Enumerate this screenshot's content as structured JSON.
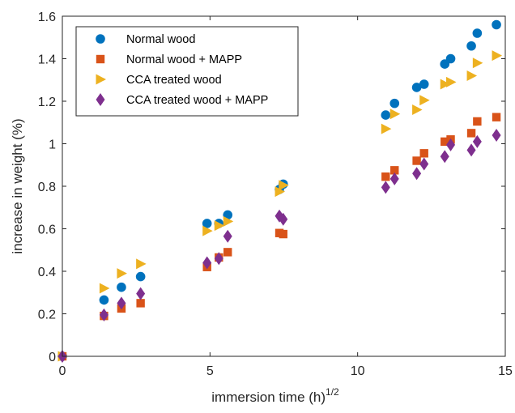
{
  "chart_data": {
    "type": "scatter",
    "xlabel": "immersion time (h)",
    "xlabel_superscript": "1/2",
    "ylabel": "increase in weight (%)",
    "xlim": [
      0,
      15
    ],
    "ylim": [
      0,
      1.6
    ],
    "xticks": [
      "0",
      "5",
      "10",
      "15"
    ],
    "yticks": [
      "0",
      "0.2",
      "0.4",
      "0.6",
      "0.8",
      "1",
      "1.2",
      "1.4",
      "1.6"
    ],
    "grid": false,
    "legend_position": "top-left",
    "series": [
      {
        "name": "Normal wood",
        "marker": "circle",
        "color": "#0072BD",
        "points": [
          [
            0,
            0.0
          ],
          [
            1.41,
            0.265
          ],
          [
            2.0,
            0.325
          ],
          [
            2.65,
            0.375
          ],
          [
            4.9,
            0.625
          ],
          [
            5.3,
            0.625
          ],
          [
            5.6,
            0.665
          ],
          [
            7.35,
            0.785
          ],
          [
            7.48,
            0.81
          ],
          [
            10.95,
            1.135
          ],
          [
            11.25,
            1.19
          ],
          [
            12.0,
            1.265
          ],
          [
            12.25,
            1.28
          ],
          [
            12.95,
            1.375
          ],
          [
            13.15,
            1.4
          ],
          [
            13.85,
            1.46
          ],
          [
            14.05,
            1.52
          ],
          [
            14.7,
            1.56
          ]
        ]
      },
      {
        "name": "Normal wood + MAPP",
        "marker": "square",
        "color": "#D95319",
        "points": [
          [
            0,
            0.0
          ],
          [
            1.41,
            0.19
          ],
          [
            2.0,
            0.225
          ],
          [
            2.65,
            0.25
          ],
          [
            4.9,
            0.42
          ],
          [
            5.3,
            0.465
          ],
          [
            5.6,
            0.49
          ],
          [
            7.35,
            0.58
          ],
          [
            7.48,
            0.575
          ],
          [
            10.95,
            0.845
          ],
          [
            11.25,
            0.875
          ],
          [
            12.0,
            0.92
          ],
          [
            12.25,
            0.955
          ],
          [
            12.95,
            1.01
          ],
          [
            13.15,
            1.02
          ],
          [
            13.85,
            1.05
          ],
          [
            14.05,
            1.105
          ],
          [
            14.7,
            1.125
          ]
        ]
      },
      {
        "name": "CCA treated wood",
        "marker": "triangle-right",
        "color": "#EDB120",
        "points": [
          [
            0,
            0.0
          ],
          [
            1.41,
            0.32
          ],
          [
            2.0,
            0.39
          ],
          [
            2.65,
            0.435
          ],
          [
            4.9,
            0.59
          ],
          [
            5.3,
            0.615
          ],
          [
            5.6,
            0.635
          ],
          [
            7.35,
            0.775
          ],
          [
            7.48,
            0.805
          ],
          [
            10.95,
            1.07
          ],
          [
            11.25,
            1.14
          ],
          [
            12.0,
            1.16
          ],
          [
            12.25,
            1.205
          ],
          [
            12.95,
            1.28
          ],
          [
            13.15,
            1.29
          ],
          [
            13.85,
            1.32
          ],
          [
            14.05,
            1.38
          ],
          [
            14.7,
            1.415
          ]
        ]
      },
      {
        "name": "CCA treated wood + MAPP",
        "marker": "diamond",
        "color": "#7E2F8E",
        "points": [
          [
            0,
            0.0
          ],
          [
            1.41,
            0.195
          ],
          [
            2.0,
            0.25
          ],
          [
            2.65,
            0.295
          ],
          [
            4.9,
            0.44
          ],
          [
            5.3,
            0.46
          ],
          [
            5.6,
            0.565
          ],
          [
            7.35,
            0.66
          ],
          [
            7.48,
            0.645
          ],
          [
            10.95,
            0.795
          ],
          [
            11.25,
            0.835
          ],
          [
            12.0,
            0.86
          ],
          [
            12.25,
            0.905
          ],
          [
            12.95,
            0.94
          ],
          [
            13.15,
            0.995
          ],
          [
            13.85,
            0.97
          ],
          [
            14.05,
            1.01
          ],
          [
            14.7,
            1.04
          ]
        ]
      }
    ]
  }
}
